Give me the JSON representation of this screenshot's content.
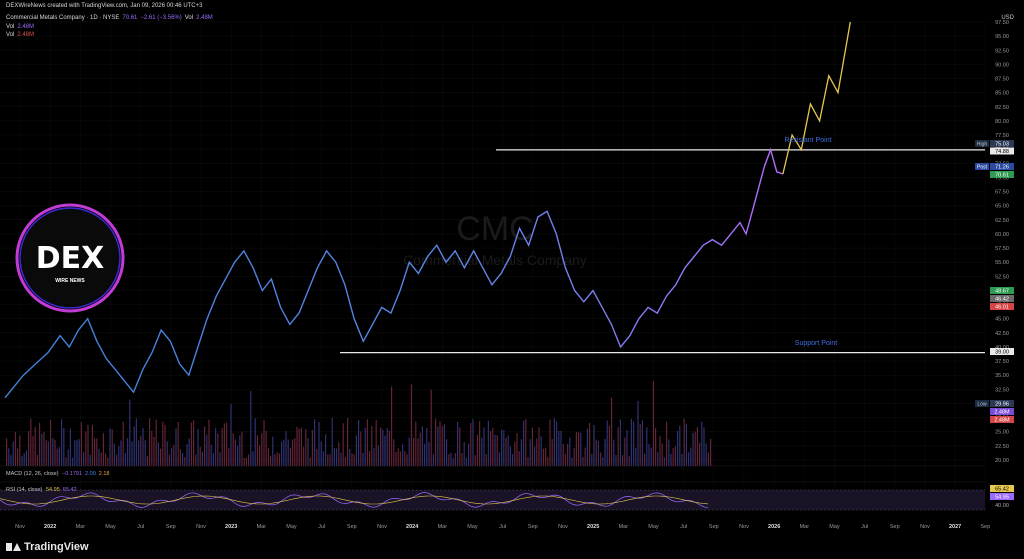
{
  "header": {
    "created_by": "DEXWireNews created with TradingView.com, Jan 09, 2026 00:46 UTC+3",
    "symbol_line": "Commercial Metals Company · 1D · NYSE",
    "price_o": "70.61",
    "price_change": "−2.61 (−3.56%)",
    "vol_label": "Vol",
    "vol_value": "2.48M",
    "vol2_label": "Vol",
    "vol2_value": "2.48M",
    "vol3_label": "Vol",
    "vol3_value": "2.48M"
  },
  "currency": "USD",
  "watermark": {
    "ticker": "CMC",
    "name": "Commercial Metals Company"
  },
  "logo": {
    "main": "DEX",
    "sub": "WIRE NEWS"
  },
  "annotations": {
    "resistant": "Resistant Point",
    "support": "Support Point"
  },
  "price_labels": {
    "high_tag": "High",
    "high_value": "75.03",
    "resist_value": "74.88",
    "post_tag": "Post",
    "post_value": "71.26",
    "last_value": "70.61",
    "v1": "48.67",
    "v2": "46.42",
    "v3": "46.01",
    "support_value": "39.00",
    "low_tag": "Low",
    "low_value": "29.96",
    "vol_a": "2.48M",
    "vol_b": "2.48M"
  },
  "indicators": {
    "macd_label": "MACD (12, 26, close)",
    "macd_v1": "−0.1791",
    "macd_v2": "2.00",
    "macd_v3": "2.18",
    "rsi_label": "RSI (14, close)",
    "rsi_v1": "54.95",
    "rsi_v2": "65.42",
    "rsi_box1": "65.42",
    "rsi_box2": "54.95",
    "rsi_tick": "40.00"
  },
  "chart_data": {
    "type": "line",
    "x_labels": [
      "Nov",
      "2022",
      "Mar",
      "May",
      "Jul",
      "Sep",
      "Nov",
      "2023",
      "Mar",
      "May",
      "Jul",
      "Sep",
      "Nov",
      "2024",
      "Mar",
      "May",
      "Jul",
      "Sep",
      "Nov",
      "2025",
      "Mar",
      "May",
      "Jul",
      "Sep",
      "Nov",
      "2026",
      "Mar",
      "May",
      "Jul",
      "Sep",
      "Nov",
      "2027",
      "Sep"
    ],
    "y_ticks": [
      20,
      22.5,
      25,
      27.5,
      30,
      32.5,
      35,
      37.5,
      40,
      42.5,
      45,
      47.5,
      50,
      52.5,
      55,
      57.5,
      60,
      62.5,
      65,
      67.5,
      70,
      72.5,
      75,
      77.5,
      80,
      82.5,
      85,
      87.5,
      90,
      92.5,
      95,
      97.5
    ],
    "ylim": [
      20,
      97.5
    ],
    "price_series": [
      [
        0,
        31
      ],
      [
        0.3,
        33
      ],
      [
        0.6,
        35
      ],
      [
        1,
        37
      ],
      [
        1.4,
        39
      ],
      [
        1.8,
        42
      ],
      [
        2.1,
        40
      ],
      [
        2.4,
        43
      ],
      [
        2.7,
        45
      ],
      [
        3.0,
        41
      ],
      [
        3.3,
        38
      ],
      [
        3.6,
        36
      ],
      [
        3.9,
        34
      ],
      [
        4.2,
        32
      ],
      [
        4.5,
        36
      ],
      [
        4.8,
        39
      ],
      [
        5.1,
        43
      ],
      [
        5.4,
        41
      ],
      [
        5.7,
        37
      ],
      [
        6.0,
        35
      ],
      [
        6.3,
        40
      ],
      [
        6.6,
        45
      ],
      [
        6.9,
        49
      ],
      [
        7.2,
        52
      ],
      [
        7.5,
        55
      ],
      [
        7.8,
        57
      ],
      [
        8.1,
        54
      ],
      [
        8.4,
        50
      ],
      [
        8.7,
        52
      ],
      [
        9.0,
        47
      ],
      [
        9.3,
        44
      ],
      [
        9.6,
        46
      ],
      [
        9.9,
        50
      ],
      [
        10.2,
        54
      ],
      [
        10.5,
        57
      ],
      [
        10.8,
        55
      ],
      [
        11.1,
        51
      ],
      [
        11.4,
        45
      ],
      [
        11.7,
        41
      ],
      [
        12.0,
        44
      ],
      [
        12.3,
        47
      ],
      [
        12.6,
        46
      ],
      [
        12.9,
        50
      ],
      [
        13.2,
        55
      ],
      [
        13.5,
        53
      ],
      [
        13.8,
        56
      ],
      [
        14.1,
        58
      ],
      [
        14.4,
        55
      ],
      [
        14.7,
        57
      ],
      [
        15.0,
        54
      ],
      [
        15.3,
        57
      ],
      [
        15.6,
        54
      ],
      [
        15.9,
        51
      ],
      [
        16.2,
        53
      ],
      [
        16.5,
        56
      ],
      [
        16.8,
        61
      ],
      [
        17.1,
        58
      ],
      [
        17.4,
        63
      ],
      [
        17.7,
        64
      ],
      [
        18.0,
        60
      ],
      [
        18.3,
        54
      ],
      [
        18.6,
        50
      ],
      [
        18.9,
        48
      ],
      [
        19.2,
        50
      ],
      [
        19.5,
        47
      ],
      [
        19.8,
        44
      ],
      [
        20.1,
        40
      ],
      [
        20.4,
        42
      ],
      [
        20.7,
        45
      ],
      [
        21.0,
        47
      ],
      [
        21.3,
        46
      ],
      [
        21.6,
        49
      ],
      [
        21.9,
        51
      ],
      [
        22.2,
        54
      ],
      [
        22.5,
        56
      ],
      [
        22.8,
        58
      ],
      [
        23.1,
        59
      ],
      [
        23.4,
        58
      ],
      [
        23.7,
        60
      ],
      [
        24.0,
        62
      ],
      [
        24.2,
        60
      ],
      [
        24.4,
        64
      ],
      [
        24.6,
        68
      ],
      [
        24.8,
        72
      ],
      [
        25.0,
        74.9
      ],
      [
        25.2,
        71
      ],
      [
        25.4,
        70.6
      ]
    ],
    "projection": [
      [
        25.4,
        70.6
      ],
      [
        25.7,
        77.5
      ],
      [
        26.0,
        74.9
      ],
      [
        26.3,
        83
      ],
      [
        26.6,
        80
      ],
      [
        26.9,
        88
      ],
      [
        27.2,
        85
      ],
      [
        27.6,
        97.5
      ]
    ],
    "resistance": 74.88,
    "support": 39.0,
    "grid": true,
    "legend": "none"
  }
}
